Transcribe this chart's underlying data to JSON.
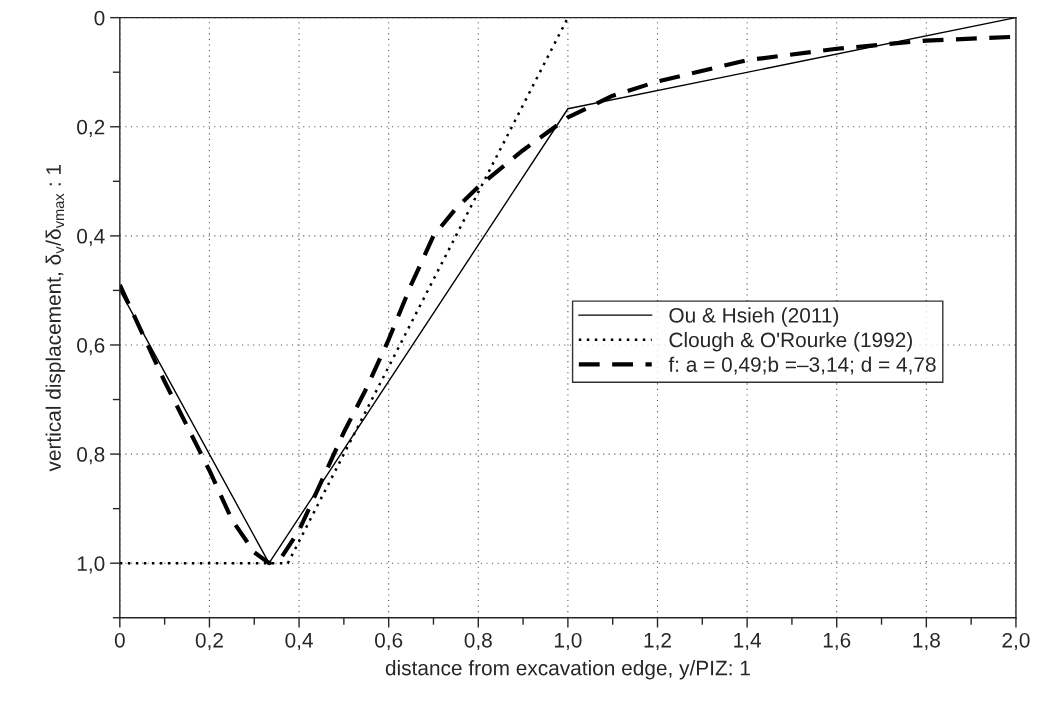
{
  "chart_data": {
    "type": "line",
    "xlabel": "distance from excavation edge, y/PIZ: 1",
    "ylabel": "vertical displacement, δ$_{v}$/δ$_{vmax}$ : 1",
    "xlim": [
      0,
      2.0
    ],
    "xticks": [
      0,
      {
        "value": 0.2,
        "label": "0,2"
      },
      {
        "value": 0.4,
        "label": "0,4"
      },
      {
        "value": 0.6,
        "label": "0,6"
      },
      {
        "value": 0.8,
        "label": "0,8"
      },
      {
        "value": 1.0,
        "label": "1,0"
      },
      {
        "value": 1.2,
        "label": "1,2"
      },
      {
        "value": 1.4,
        "label": "1,4"
      },
      {
        "value": 1.6,
        "label": "1,6"
      },
      {
        "value": 1.8,
        "label": "1,8"
      },
      {
        "value": 2.0,
        "label": "2,0"
      }
    ],
    "ylim": [
      1.1,
      0
    ],
    "yticks": [
      0,
      {
        "value": 0.2,
        "label": "0,2"
      },
      {
        "value": 0.4,
        "label": "0,4"
      },
      {
        "value": 0.6,
        "label": "0,6"
      },
      {
        "value": 0.8,
        "label": "0,8"
      },
      {
        "value": 1.0,
        "label": "1,0"
      }
    ],
    "grid": true,
    "legend": "center right",
    "series": [
      {
        "name": "Ou & Hsieh (2011)",
        "color": "#000000",
        "line_style": "solid",
        "x": [
          0,
          0.333,
          1.0,
          2.0
        ],
        "values": [
          0.5,
          1.0,
          0.167,
          0
        ]
      },
      {
        "name": "Clough & O'Rourke (1992)",
        "color": "#000000",
        "line_style": "dotted",
        "x": [
          0,
          0.375,
          1.0
        ],
        "values": [
          1.0,
          1.0,
          0
        ]
      },
      {
        "name": "f: a = 0,49;b =–3,14; d = 4,78",
        "color": "#000000",
        "line_style": "dashed",
        "x": [
          0,
          0.1,
          0.2,
          0.25,
          0.3,
          0.333,
          0.36,
          0.4,
          0.45,
          0.5,
          0.55,
          0.6,
          0.65,
          0.7,
          0.75,
          0.8,
          0.9,
          1.0,
          1.1,
          1.2,
          1.4,
          1.6,
          1.8,
          2.0
        ],
        "values": [
          0.49,
          0.667,
          0.83,
          0.92,
          0.98,
          1.0,
          0.99,
          0.94,
          0.85,
          0.76,
          0.68,
          0.59,
          0.49,
          0.4,
          0.35,
          0.31,
          0.243,
          0.183,
          0.143,
          0.117,
          0.078,
          0.057,
          0.042,
          0.035
        ]
      }
    ]
  }
}
